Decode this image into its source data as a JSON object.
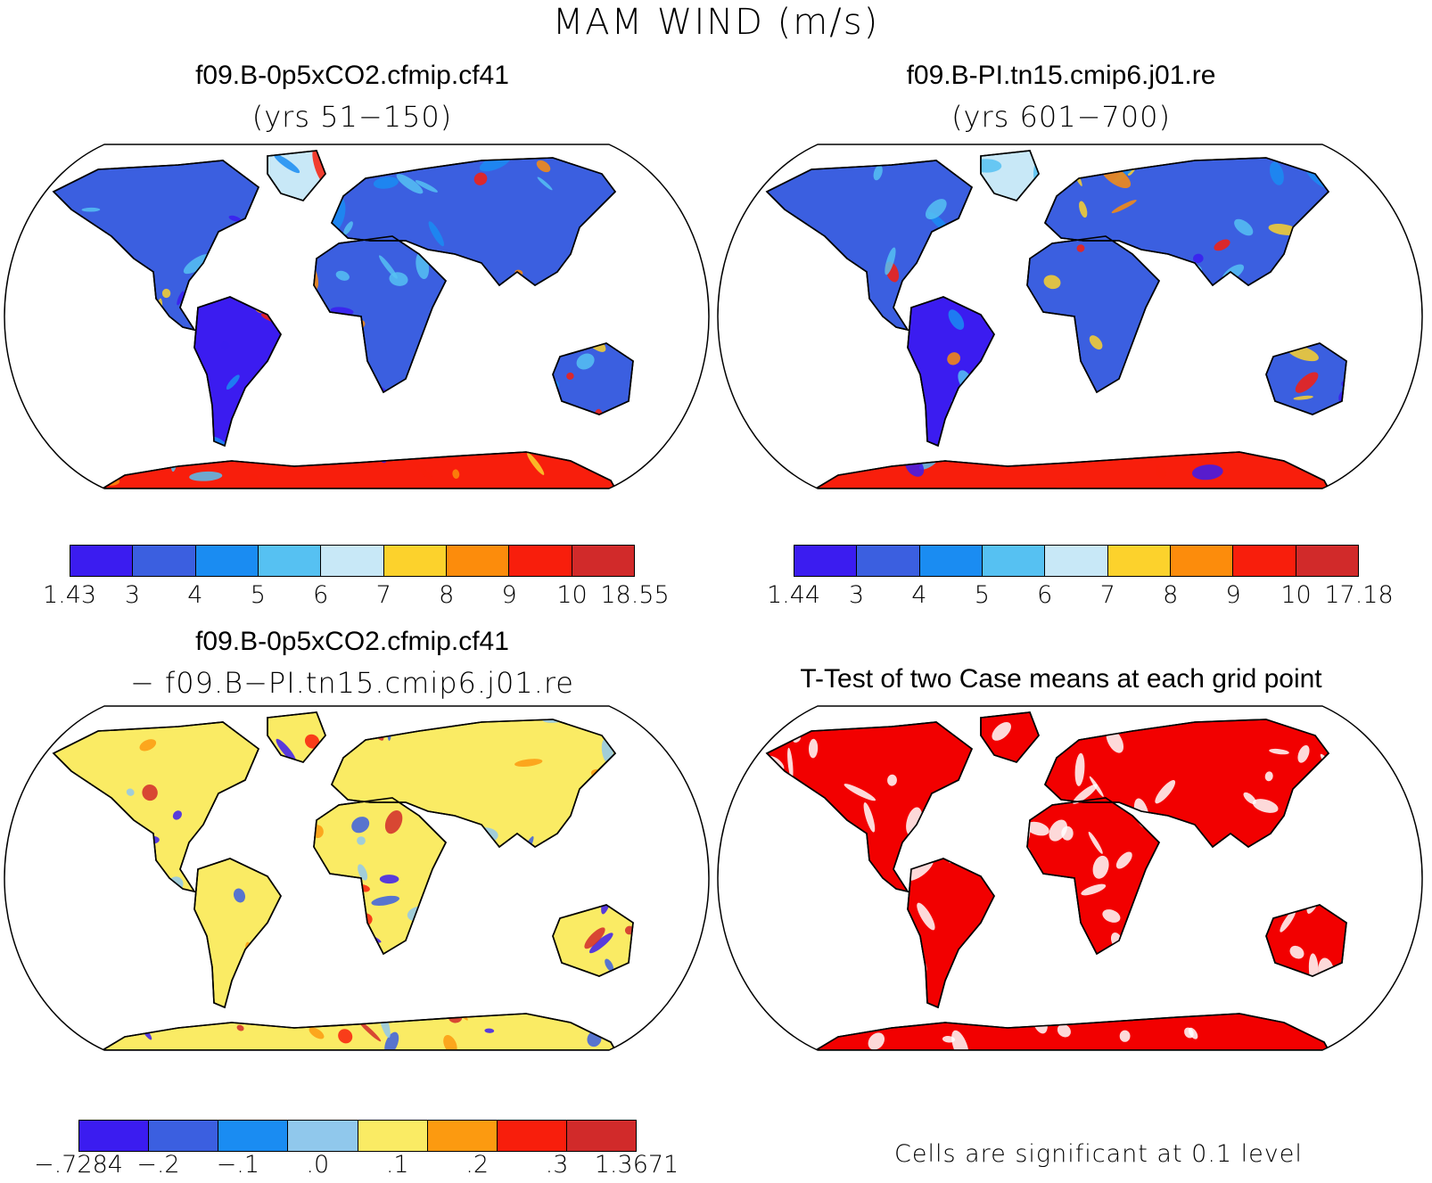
{
  "title": "MAM WIND (m/s)",
  "colors": {
    "wind": [
      "#3b1cf0",
      "#3b5fe0",
      "#1a8cf2",
      "#56c1f2",
      "#c8e8f7",
      "#fcd22c",
      "#fc8c0c",
      "#f81e0c",
      "#d12a2a"
    ],
    "diff": [
      "#3b1cf0",
      "#3b5fe0",
      "#1a8cf2",
      "#90c8ec",
      "#faeb64",
      "#fc9a10",
      "#f81e0c",
      "#d12a2a"
    ],
    "significant": "#f20000"
  },
  "panels": [
    {
      "title": "f09.B-0p5xCO2.cfmip.cf41",
      "subtitle": "(yrs 51−150)",
      "colorbar_labels": [
        "1.43",
        "3",
        "4",
        "5",
        "6",
        "7",
        "8",
        "9",
        "10",
        "18.55"
      ]
    },
    {
      "title": "f09.B-PI.tn15.cmip6.j01.re",
      "subtitle": "(yrs 601−700)",
      "colorbar_labels": [
        "1.44",
        "3",
        "4",
        "5",
        "6",
        "7",
        "8",
        "9",
        "10",
        "17.18"
      ]
    },
    {
      "title": "f09.B-0p5xCO2.cfmip.cf41",
      "subtitle": "− f09.B−PI.tn15.cmip6.j01.re",
      "colorbar_labels": [
        "−.7284",
        "−.2",
        "−.1",
        ".0",
        ".1",
        ".2",
        ".3",
        "1.3671"
      ]
    },
    {
      "title": "T-Test of two Case means at each grid point",
      "note": "Cells are significant at 0.1 level"
    }
  ]
}
